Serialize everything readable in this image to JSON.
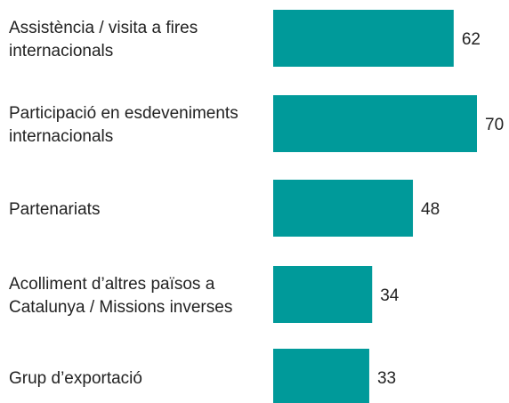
{
  "chart_data": {
    "type": "bar",
    "orientation": "horizontal",
    "categories": [
      [
        "Assistència / visita a fires",
        "internacionals"
      ],
      [
        "Participació en esdeveniments",
        "internacionals"
      ],
      [
        "Partenariats"
      ],
      [
        "Acolliment d’altres països a",
        "Catalunya / Missions inverses"
      ],
      [
        "Grup d’exportació"
      ]
    ],
    "values": [
      62,
      70,
      48,
      34,
      33
    ],
    "value_labels": [
      "62",
      "70",
      "48",
      "34",
      "33"
    ],
    "title": "",
    "xlabel": "",
    "ylabel": "",
    "xlim": [
      0,
      70
    ],
    "grid": false,
    "legend": "none",
    "colors": {
      "bar": "#009a9a",
      "text": "#222222"
    }
  }
}
